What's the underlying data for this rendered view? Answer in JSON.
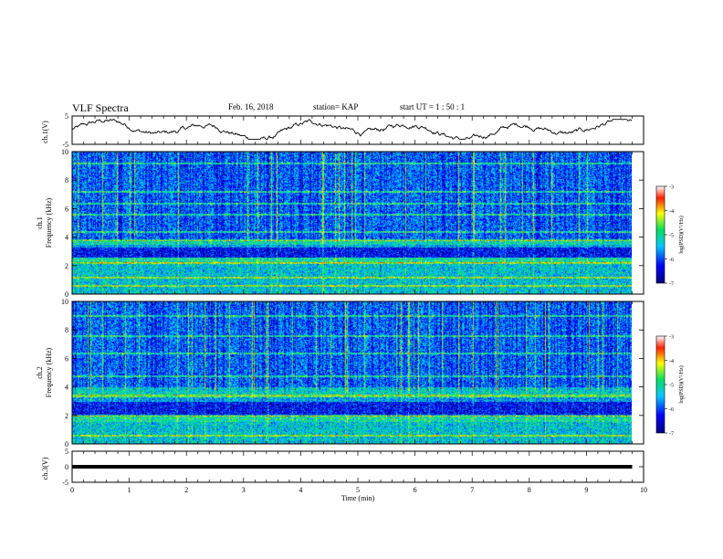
{
  "header": {
    "title": "VLF Spectra",
    "date": "Feb. 16, 2018",
    "station": "station= KAP",
    "start_time": "start  UT =   1 : 50 : 1"
  },
  "chart_data": [
    {
      "type": "line",
      "title": "",
      "ylabel": "ch.1(V)",
      "ylim": [
        -5,
        5
      ],
      "yticks": [
        "5",
        "-5"
      ],
      "xlabel": "Time  (min)",
      "xlim": [
        0,
        10
      ],
      "series": [
        {
          "name": "",
          "description_values": "noisy waveform oscillating roughly between -2 and 3 V"
        }
      ]
    },
    {
      "type": "heatmap",
      "title": "",
      "ylabel": "ch.1 Frequency  (kHz)",
      "ylim": [
        0,
        10
      ],
      "yticks": [
        "0",
        "2",
        "4",
        "6",
        "8",
        "10"
      ],
      "xlim": [
        0,
        9.8
      ],
      "colorbar": {
        "label": "log(PSD)(V²/Hz)",
        "range": [
          -7,
          -3
        ],
        "ticks": [
          "-3",
          "-4",
          "-5",
          "-6",
          "-7"
        ]
      },
      "bands_khz": [
        {
          "from": 0,
          "to": 2.2,
          "level": -5.3
        },
        {
          "from": 2.2,
          "to": 2.6,
          "level": -5.0
        },
        {
          "from": 2.6,
          "to": 3.3,
          "level": -6.3
        },
        {
          "from": 3.3,
          "to": 3.5,
          "level": -5.5
        },
        {
          "from": 3.5,
          "to": 3.8,
          "level": -5.1
        },
        {
          "from": 3.8,
          "to": 10,
          "level": -5.8
        }
      ],
      "lines_khz": [
        0.6,
        1.2,
        2.2,
        3.8,
        4.4,
        5.6,
        6.4,
        7.2,
        9.2
      ]
    },
    {
      "type": "heatmap",
      "title": "",
      "ylabel": "ch.2 Frequency  (kHz)",
      "ylim": [
        0,
        10
      ],
      "yticks": [
        "0",
        "2",
        "4",
        "6",
        "8",
        "10"
      ],
      "xlim": [
        0,
        9.8
      ],
      "colorbar": {
        "label": "log(PSD)(V²/Hz)",
        "range": [
          -7,
          -3
        ],
        "ticks": [
          "-3",
          "-4",
          "-5",
          "-6",
          "-7"
        ]
      },
      "bands_khz": [
        {
          "from": 0,
          "to": 1.6,
          "level": -5.3
        },
        {
          "from": 1.6,
          "to": 2.0,
          "level": -5.0
        },
        {
          "from": 2.0,
          "to": 3.0,
          "level": -6.3
        },
        {
          "from": 3.0,
          "to": 3.4,
          "level": -5.5
        },
        {
          "from": 3.4,
          "to": 4.0,
          "level": -5.2
        },
        {
          "from": 4.0,
          "to": 10,
          "level": -5.8
        }
      ],
      "lines_khz": [
        0.6,
        2.0,
        3.4,
        4.8,
        6.4,
        7.6,
        9.0
      ]
    },
    {
      "type": "line",
      "title": "",
      "ylabel": "ch.3(V)",
      "ylim": [
        -5,
        5
      ],
      "yticks": [
        "5",
        "0",
        "-5"
      ],
      "xlabel": "Time  (min)",
      "xlim": [
        0,
        10
      ],
      "xticks": [
        "0",
        "1",
        "2",
        "3",
        "4",
        "5",
        "6",
        "7",
        "8",
        "9",
        "10"
      ],
      "series": [
        {
          "name": "",
          "x": [
            0,
            9.8
          ],
          "values": [
            0,
            0
          ]
        }
      ]
    }
  ]
}
